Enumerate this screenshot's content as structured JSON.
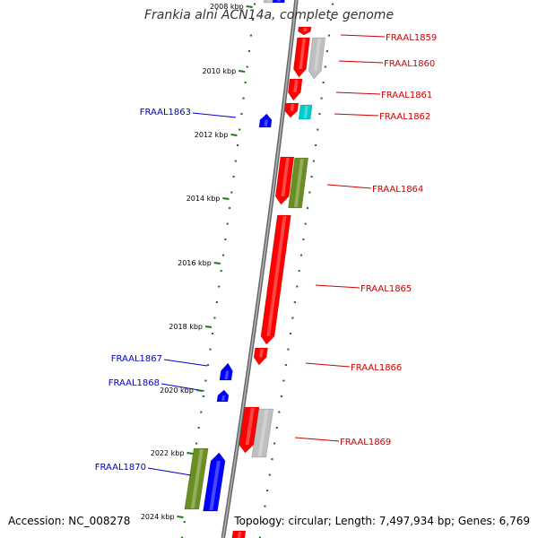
{
  "title": "Frankia alni ACN14a, complete genome",
  "footer": {
    "accession": "Accession: NC_008278",
    "summary": "Topology: circular; Length: 7,497,934 bp; Genes: 6,769"
  },
  "colors": {
    "forward_gene": "#ff0000",
    "reverse_gene": "#0000ff",
    "olive_gene": "#6b8e23",
    "grey_gene": "#bfbfbf",
    "cyan_gene": "#00cccc",
    "scale_tick": "#1a7a1a",
    "backbone": "#888888",
    "forward_label": "#cc0000",
    "reverse_label": "#0000cc"
  },
  "scale_labels": [
    "2008 kbp",
    "2010 kbp",
    "2012 kbp",
    "2014 kbp",
    "2016 kbp",
    "2018 kbp",
    "2020 kbp",
    "2022 kbp",
    "2024 kbp"
  ],
  "gene_labels": {
    "forward": [
      "FRAAL1859",
      "FRAAL1860",
      "FRAAL1861",
      "FRAAL1862",
      "FRAAL1864",
      "FRAAL1865",
      "FRAAL1866",
      "FRAAL1869"
    ],
    "reverse": [
      "FRAAL1863",
      "FRAAL1867",
      "FRAAL1868",
      "FRAAL1870"
    ]
  }
}
